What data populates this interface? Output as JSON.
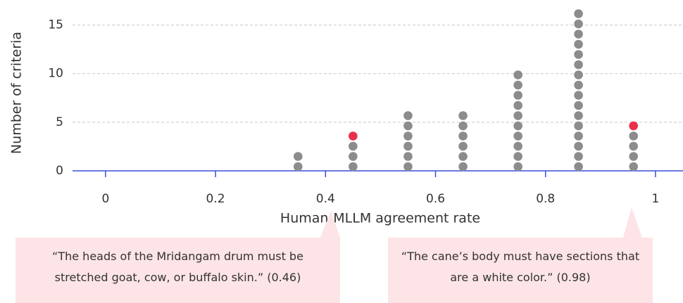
{
  "chart_data": {
    "type": "dot",
    "xlabel": "Human-MLLM agreement rate",
    "ylabel": "Number of criteria",
    "x": [
      0.35,
      0.45,
      0.55,
      0.65,
      0.75,
      0.86,
      0.96
    ],
    "series": [
      {
        "color": "#8c8c8c",
        "values": [
          2,
          3,
          6,
          6,
          10,
          16,
          4
        ]
      },
      {
        "color": "#ec2f4b",
        "values": [
          0,
          1,
          0,
          0,
          0,
          0,
          1
        ]
      }
    ],
    "xlim": [
      -0.06,
      1.05
    ],
    "xticks": [
      0,
      0.2,
      0.4,
      0.6,
      0.8,
      1
    ],
    "ylim": [
      0,
      17.5
    ],
    "yticks": [
      0,
      5,
      10,
      15
    ],
    "grid": true,
    "axis_color": "#3a4fd8",
    "annotations": [
      "“The heads of the Mridangam drum must be stretched goat, cow, or buffalo skin.” (0.46)",
      "“The cane’s body must have sections that are a white color.” (0.98)"
    ]
  }
}
